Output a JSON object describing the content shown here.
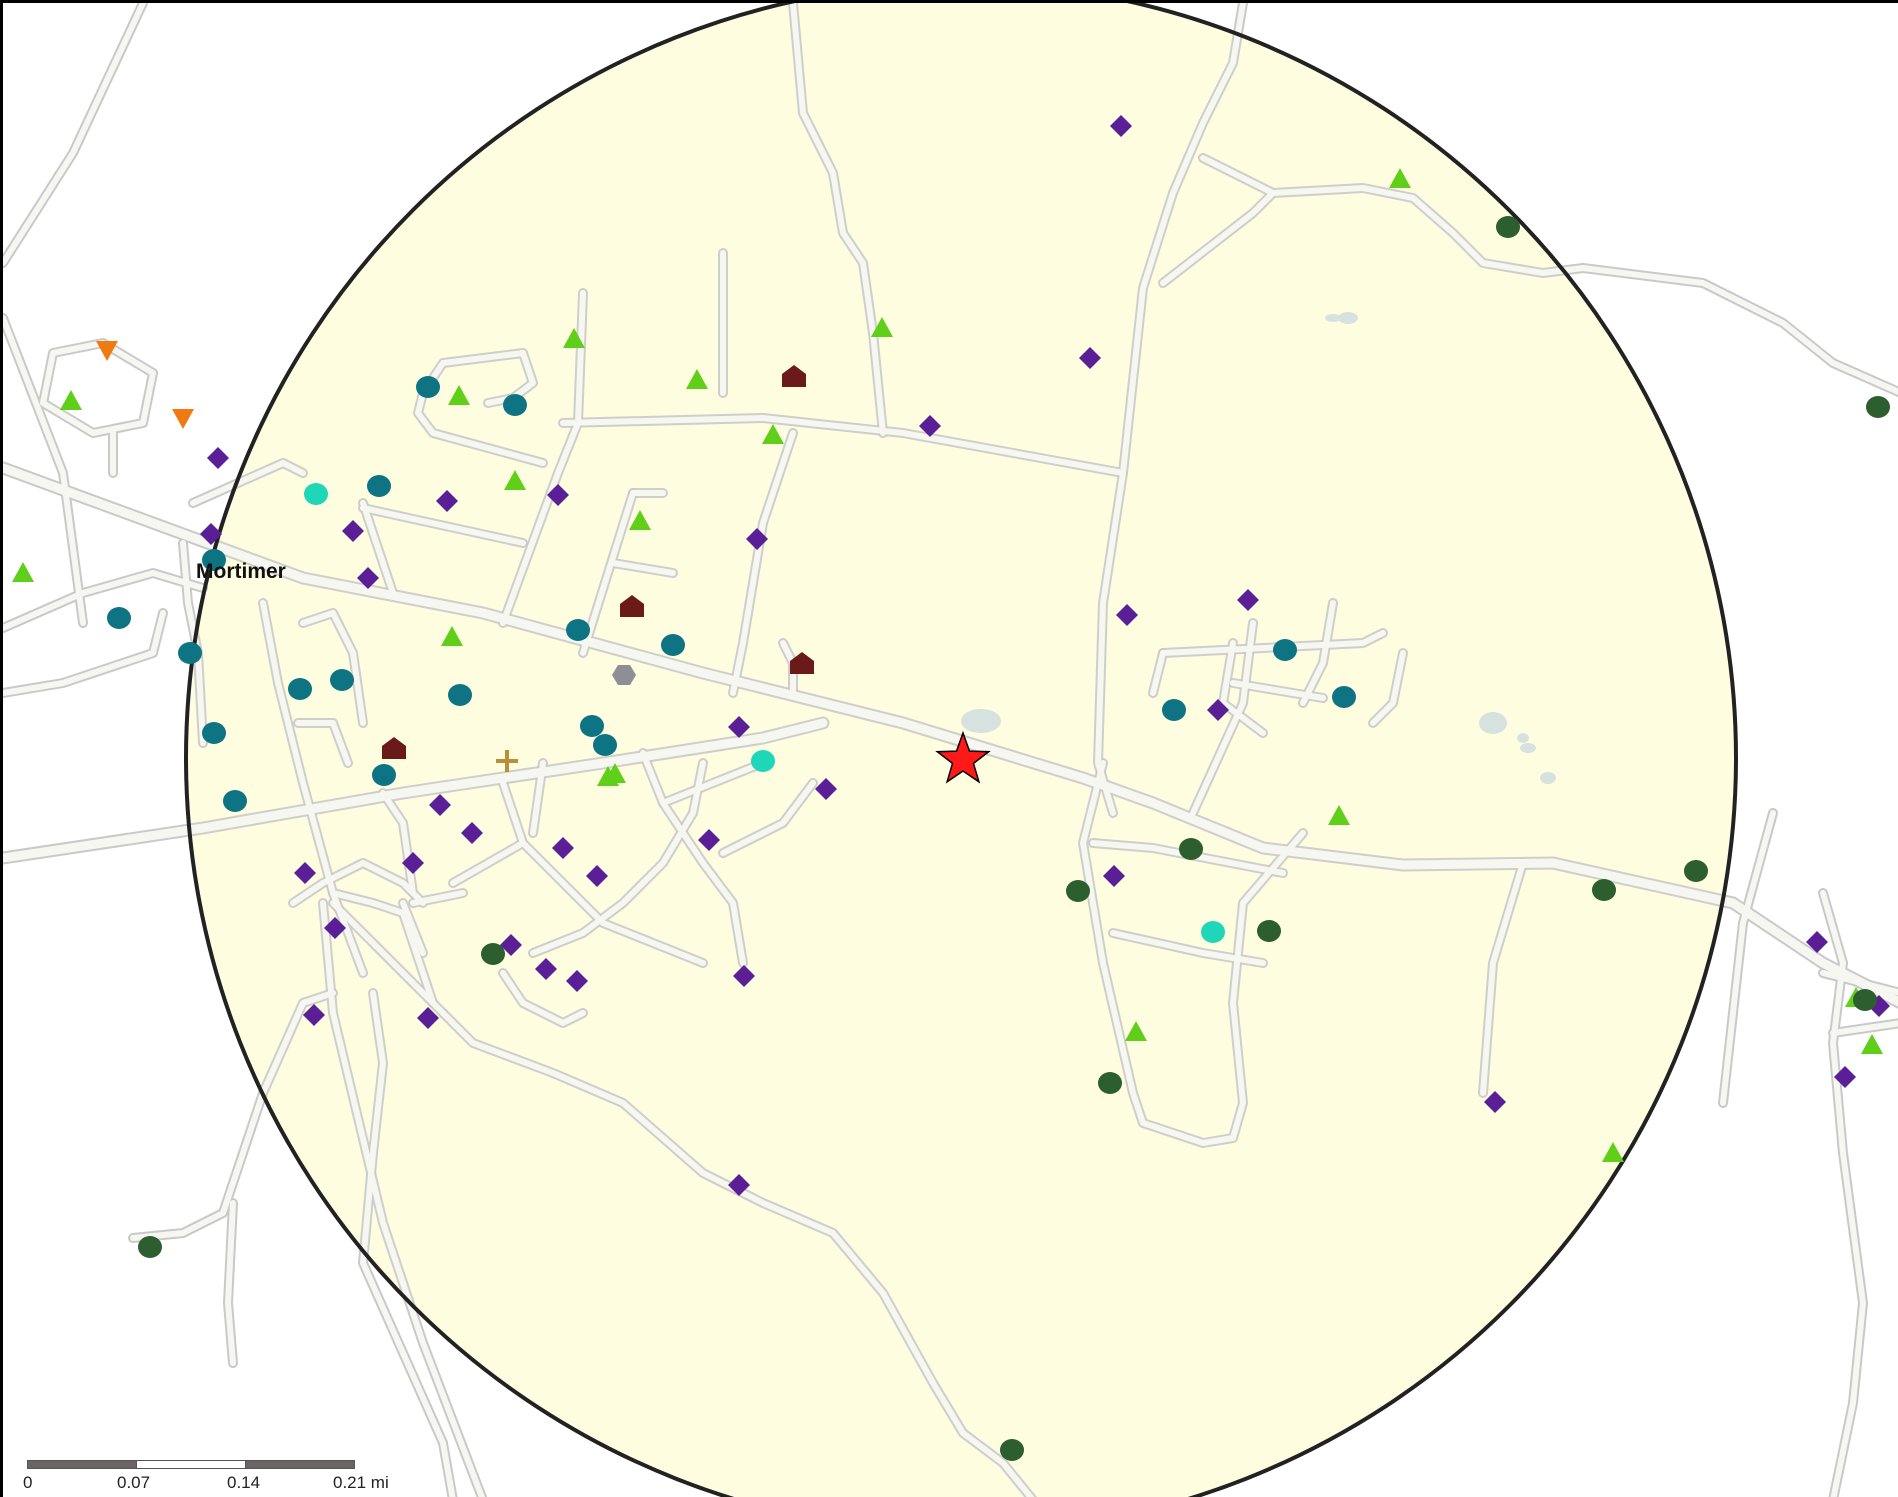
{
  "map": {
    "place_label": "Mortimer",
    "colors": {
      "buffer_fill": "#fefde0",
      "buffer_stroke": "#222222",
      "road_casing": "#c9c9c9",
      "road_fill": "#f7f7f2",
      "water": "#d6e2e0",
      "center_star": "#ff1a1a"
    },
    "center_marker": "red-star-icon",
    "symbols": {
      "diamond": {
        "icon": "purple-diamond-icon",
        "color": "#5a1e96"
      },
      "triangle_up": {
        "icon": "green-triangle-icon",
        "color": "#5fcf1a"
      },
      "triangle_down": {
        "icon": "orange-inverted-triangle-icon",
        "color": "#f07a12"
      },
      "circle_teal": {
        "icon": "teal-circle-icon",
        "color": "#0e7483"
      },
      "circle_cyan": {
        "icon": "cyan-circle-icon",
        "color": "#20d6b8"
      },
      "circle_dark": {
        "icon": "dark-green-circle-icon",
        "color": "#2c5e2f"
      },
      "house": {
        "icon": "brown-house-icon",
        "color": "#6b1a1a"
      },
      "hexagon": {
        "icon": "gray-hexagon-icon",
        "color": "#8e8e96"
      },
      "cross": {
        "icon": "gold-cross-icon",
        "color": "#b8903a"
      }
    }
  },
  "scale_bar": {
    "ticks": [
      "0",
      "0.07",
      "0.14",
      "0.21 mi"
    ]
  }
}
